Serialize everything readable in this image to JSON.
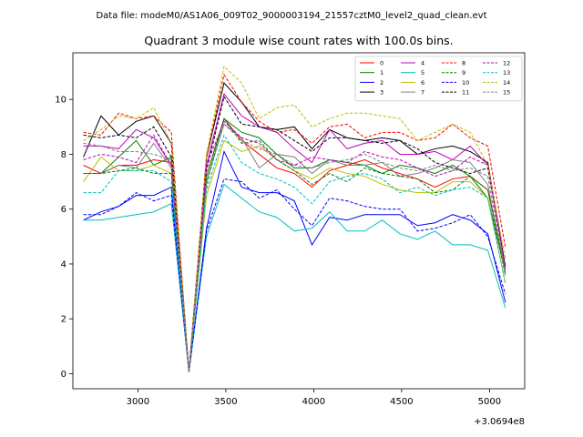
{
  "suptitle": "Data file: modeM0/AS1A06_009T02_9000003194_21557cztM0_level2_quad_clean.evt",
  "chart_data": {
    "type": "line",
    "title": "Quadrant 3 module wise count rates with 100.0s bins.",
    "xlabel": "",
    "ylabel": "",
    "x_offset_label": "+3.0694e8",
    "x_ticks": [
      3000,
      3500,
      4000,
      4500,
      5000
    ],
    "y_ticks": [
      0,
      2,
      4,
      6,
      8,
      10
    ],
    "xlim": [
      2630,
      5200
    ],
    "ylim": [
      -0.55,
      11.7
    ],
    "grid": false,
    "legend_position": "top-right",
    "legend_columns": 4,
    "x": [
      2690,
      2790,
      2890,
      2990,
      3090,
      3190,
      3290,
      3390,
      3490,
      3590,
      3690,
      3790,
      3890,
      3990,
      4090,
      4190,
      4290,
      4390,
      4490,
      4590,
      4690,
      4790,
      4890,
      4990,
      5090
    ],
    "series": [
      {
        "name": "0",
        "color": "#ff0000",
        "dash": false,
        "values": [
          7.6,
          7.3,
          7.6,
          7.6,
          7.8,
          7.7,
          0.1,
          7.2,
          9.3,
          8.5,
          8.0,
          7.5,
          7.3,
          6.8,
          7.4,
          7.6,
          7.8,
          7.5,
          7.3,
          7.1,
          6.8,
          7.1,
          7.2,
          6.7,
          3.8
        ]
      },
      {
        "name": "1",
        "color": "#008000",
        "dash": false,
        "values": [
          7.3,
          7.3,
          7.9,
          8.5,
          7.6,
          7.9,
          0.05,
          7.2,
          9.3,
          8.8,
          8.6,
          8.0,
          7.5,
          7.5,
          7.8,
          7.7,
          7.6,
          7.3,
          7.6,
          7.5,
          7.3,
          7.6,
          7.2,
          6.4,
          3.7
        ]
      },
      {
        "name": "2",
        "color": "#0000ff",
        "dash": false,
        "values": [
          5.6,
          5.9,
          6.1,
          6.5,
          6.5,
          6.8,
          0.05,
          5.3,
          8.1,
          6.8,
          6.6,
          6.6,
          6.3,
          4.7,
          5.7,
          5.6,
          5.8,
          5.8,
          5.8,
          5.4,
          5.5,
          5.8,
          5.6,
          5.1,
          2.6
        ]
      },
      {
        "name": "3",
        "color": "#000000",
        "dash": false,
        "values": [
          7.9,
          9.4,
          8.7,
          9.2,
          9.4,
          8.4,
          0.05,
          7.9,
          10.6,
          9.9,
          9.0,
          8.9,
          9.0,
          8.2,
          8.9,
          8.6,
          8.5,
          8.6,
          8.5,
          8.0,
          8.2,
          8.3,
          8.1,
          7.7,
          3.9
        ]
      },
      {
        "name": "4",
        "color": "#bf00bf",
        "dash": false,
        "values": [
          8.3,
          8.3,
          8.2,
          8.9,
          8.6,
          7.6,
          0.05,
          7.6,
          10.2,
          9.4,
          9.0,
          8.8,
          8.2,
          7.7,
          8.9,
          8.2,
          8.4,
          8.5,
          8.0,
          8.0,
          8.1,
          7.8,
          8.3,
          7.6,
          3.9
        ]
      },
      {
        "name": "5",
        "color": "#00bfbf",
        "dash": false,
        "values": [
          5.6,
          5.6,
          5.7,
          5.8,
          5.9,
          6.2,
          0.05,
          5.0,
          6.9,
          6.4,
          5.9,
          5.7,
          5.2,
          5.3,
          5.9,
          5.2,
          5.2,
          5.6,
          5.1,
          4.9,
          5.2,
          4.7,
          4.7,
          4.5,
          2.4
        ]
      },
      {
        "name": "6",
        "color": "#bfbf00",
        "dash": false,
        "values": [
          7.0,
          7.9,
          7.4,
          7.4,
          7.6,
          7.3,
          0.05,
          6.5,
          8.5,
          8.1,
          8.3,
          7.8,
          7.4,
          7.1,
          7.5,
          7.3,
          7.2,
          6.9,
          6.7,
          6.6,
          6.6,
          7.0,
          7.0,
          6.4,
          3.3
        ]
      },
      {
        "name": "7",
        "color": "#808080",
        "dash": false,
        "values": [
          7.3,
          7.3,
          7.6,
          7.5,
          8.4,
          7.5,
          0.05,
          7.0,
          9.1,
          8.6,
          7.5,
          8.0,
          7.9,
          7.3,
          7.8,
          7.6,
          7.6,
          7.7,
          7.2,
          7.3,
          7.5,
          7.8,
          7.7,
          6.9,
          3.6
        ]
      },
      {
        "name": "8",
        "color": "#ff0000",
        "dash": true,
        "values": [
          8.8,
          8.7,
          9.5,
          9.3,
          9.4,
          8.8,
          0.05,
          7.9,
          10.9,
          9.9,
          9.2,
          8.8,
          8.9,
          8.4,
          9.0,
          9.1,
          8.6,
          8.8,
          8.8,
          8.5,
          8.6,
          9.1,
          8.6,
          8.3,
          4.6
        ]
      },
      {
        "name": "9",
        "color": "#008000",
        "dash": true,
        "values": [
          7.3,
          7.3,
          7.4,
          7.5,
          7.3,
          7.3,
          0.05,
          6.9,
          9.3,
          8.4,
          8.5,
          7.8,
          7.4,
          6.9,
          7.3,
          7.0,
          7.5,
          7.3,
          7.2,
          7.1,
          6.6,
          6.7,
          7.2,
          6.7,
          3.6
        ]
      },
      {
        "name": "10",
        "color": "#0000ff",
        "dash": true,
        "values": [
          5.8,
          5.8,
          6.1,
          6.6,
          6.3,
          6.5,
          0.05,
          5.2,
          7.1,
          7.0,
          6.4,
          6.7,
          6.0,
          5.4,
          6.4,
          6.3,
          6.1,
          6.0,
          6.0,
          5.2,
          5.3,
          5.5,
          5.8,
          5.0,
          2.9
        ]
      },
      {
        "name": "11",
        "color": "#000000",
        "dash": true,
        "values": [
          8.7,
          8.6,
          8.7,
          8.6,
          9.0,
          7.9,
          0.05,
          7.4,
          10.1,
          9.1,
          9.0,
          8.9,
          8.5,
          8.1,
          8.6,
          8.6,
          8.5,
          8.4,
          8.5,
          8.2,
          7.7,
          7.5,
          7.3,
          7.5,
          3.9
        ]
      },
      {
        "name": "12",
        "color": "#bf00bf",
        "dash": true,
        "values": [
          7.8,
          8.0,
          7.9,
          7.7,
          8.7,
          7.6,
          0.05,
          7.6,
          9.2,
          8.6,
          8.4,
          7.8,
          7.6,
          7.9,
          7.8,
          7.7,
          8.1,
          7.9,
          7.8,
          7.5,
          7.2,
          7.4,
          7.9,
          7.6,
          3.8
        ]
      },
      {
        "name": "13",
        "color": "#00bfbf",
        "dash": true,
        "values": [
          6.6,
          6.6,
          7.4,
          7.4,
          7.4,
          7.0,
          0.05,
          6.7,
          8.7,
          7.7,
          7.3,
          7.1,
          6.8,
          6.2,
          7.0,
          7.2,
          7.3,
          7.1,
          6.6,
          6.8,
          6.5,
          6.7,
          6.8,
          6.4,
          3.3
        ]
      },
      {
        "name": "14",
        "color": "#bfbf00",
        "dash": true,
        "values": [
          8.5,
          8.9,
          9.4,
          9.3,
          9.7,
          8.4,
          0.05,
          8.0,
          11.2,
          10.6,
          9.3,
          9.7,
          9.8,
          9.0,
          9.3,
          9.5,
          9.5,
          9.4,
          9.3,
          8.5,
          8.8,
          9.1,
          8.8,
          7.6,
          4.2
        ]
      },
      {
        "name": "15",
        "color": "#808080",
        "dash": true,
        "values": [
          8.4,
          8.3,
          8.1,
          8.1,
          8.0,
          7.8,
          0.05,
          7.2,
          9.1,
          8.5,
          8.2,
          8.0,
          7.6,
          7.5,
          7.7,
          7.8,
          8.0,
          7.7,
          7.5,
          7.4,
          7.6,
          7.4,
          7.5,
          7.2,
          3.7
        ]
      }
    ]
  }
}
